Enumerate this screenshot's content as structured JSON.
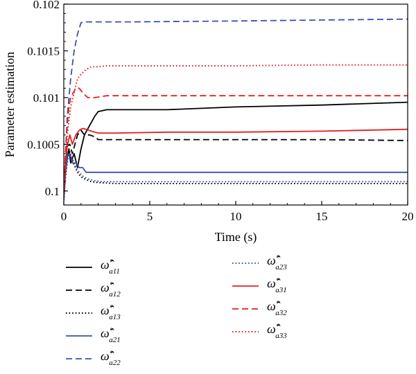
{
  "chart_data": {
    "type": "line",
    "title": "",
    "xlabel": "Time (s)",
    "ylabel": "Parameter estimation",
    "xlim": [
      0,
      20
    ],
    "ylim": [
      0.09985,
      0.102
    ],
    "x_ticks": [
      0,
      5,
      10,
      15,
      20
    ],
    "x_tick_labels": [
      "0",
      "5",
      "10",
      "15",
      "20"
    ],
    "y_ticks": [
      0.1,
      0.1005,
      0.101,
      0.1015,
      0.102
    ],
    "y_tick_labels": [
      "0.1",
      "0.1005",
      "0.101",
      "0.1015",
      "0.102"
    ],
    "grid": false,
    "legend_position": "below",
    "series": [
      {
        "name": "ω̂*a11",
        "base": "ω̂",
        "sup": "*",
        "sub": "a11",
        "color": "#000000",
        "style": "solid",
        "x": [
          0,
          0.1,
          0.2,
          0.3,
          0.4,
          0.6,
          0.8,
          1.0,
          1.2,
          1.5,
          1.8,
          2.0,
          2.5,
          3,
          4,
          6,
          10,
          15,
          20
        ],
        "y": [
          0.09995,
          0.1002,
          0.10035,
          0.10045,
          0.1003,
          0.1004,
          0.10025,
          0.10045,
          0.1006,
          0.1007,
          0.1008,
          0.10085,
          0.10087,
          0.10087,
          0.10087,
          0.10087,
          0.1009,
          0.10092,
          0.10095
        ]
      },
      {
        "name": "ω̂*a12",
        "base": "ω̂",
        "sup": "*",
        "sub": "a12",
        "color": "#000000",
        "style": "dashed",
        "x": [
          0,
          0.1,
          0.2,
          0.35,
          0.5,
          0.8,
          1.0,
          1.2,
          1.5,
          1.8,
          2.0,
          2.5,
          4,
          10,
          15,
          20
        ],
        "y": [
          0.09995,
          0.10025,
          0.10048,
          0.1005,
          0.1004,
          0.1006,
          0.10065,
          0.1006,
          0.1006,
          0.10058,
          0.10055,
          0.10055,
          0.10055,
          0.10055,
          0.10055,
          0.10054
        ]
      },
      {
        "name": "ω̂*a13",
        "base": "ω̂",
        "sup": "*",
        "sub": "a13",
        "color": "#000000",
        "style": "dotted",
        "x": [
          0,
          0.1,
          0.2,
          0.3,
          0.45,
          0.6,
          0.8,
          1.0,
          1.3,
          1.6,
          2.0,
          3,
          6,
          10,
          15,
          20
        ],
        "y": [
          0.0999,
          0.10015,
          0.1003,
          0.10045,
          0.10035,
          0.10028,
          0.1002,
          0.10015,
          0.10012,
          0.1001,
          0.10009,
          0.10008,
          0.10008,
          0.10008,
          0.10008,
          0.10008
        ]
      },
      {
        "name": "ω̂*a21",
        "base": "ω̂",
        "sup": "*",
        "sub": "a21",
        "color": "#3c4faf",
        "style": "solid",
        "x": [
          0,
          0.1,
          0.2,
          0.35,
          0.5,
          0.7,
          0.9,
          1.1,
          1.3,
          1.6,
          2.0,
          3,
          6,
          10,
          15,
          20
        ],
        "y": [
          0.0999,
          0.1002,
          0.10038,
          0.1004,
          0.1003,
          0.1003,
          0.10025,
          0.10025,
          0.1002,
          0.1002,
          0.1002,
          0.1002,
          0.1002,
          0.1002,
          0.1002,
          0.1002
        ]
      },
      {
        "name": "ω̂*a22",
        "base": "ω̂",
        "sup": "*",
        "sub": "a22",
        "color": "#3c4faf",
        "style": "dashed",
        "x": [
          0,
          0.2,
          0.4,
          0.6,
          0.8,
          1.0,
          1.2,
          1.5,
          2,
          4,
          10,
          15,
          20
        ],
        "y": [
          0.1,
          0.1008,
          0.1012,
          0.1015,
          0.10168,
          0.1018,
          0.10181,
          0.10181,
          0.10181,
          0.10181,
          0.10182,
          0.10183,
          0.10184
        ]
      },
      {
        "name": "ω̂*a23",
        "base": "ω̂",
        "sup": "*",
        "sub": "a23",
        "color": "#3c4faf",
        "style": "dotted",
        "x": [
          0,
          0.1,
          0.2,
          0.35,
          0.5,
          0.7,
          0.9,
          1.1,
          1.4,
          1.8,
          2.2,
          3,
          6,
          10,
          15,
          20
        ],
        "y": [
          0.0999,
          0.10018,
          0.10032,
          0.1004,
          0.10035,
          0.10025,
          0.1002,
          0.10016,
          0.10013,
          0.10011,
          0.1001,
          0.1001,
          0.1001,
          0.1001,
          0.1001,
          0.1001
        ]
      },
      {
        "name": "ω̂*a31",
        "base": "ω̂",
        "sup": "*",
        "sub": "a31",
        "color": "#e02020",
        "style": "solid",
        "x": [
          0,
          0.1,
          0.2,
          0.35,
          0.5,
          0.7,
          0.9,
          1.1,
          1.3,
          1.6,
          2.0,
          3,
          6,
          10,
          15,
          20
        ],
        "y": [
          0.09995,
          0.1003,
          0.10048,
          0.1006,
          0.1005,
          0.1006,
          0.10065,
          0.10067,
          0.10066,
          0.10064,
          0.10062,
          0.10062,
          0.10063,
          0.10063,
          0.10064,
          0.10066
        ]
      },
      {
        "name": "ω̂*a32",
        "base": "ω̂",
        "sup": "*",
        "sub": "a32",
        "color": "#e02020",
        "style": "dashed",
        "x": [
          0,
          0.1,
          0.2,
          0.3,
          0.4,
          0.55,
          0.7,
          0.9,
          1.1,
          1.4,
          1.8,
          2.5,
          4,
          10,
          15,
          20
        ],
        "y": [
          0.1,
          0.1004,
          0.1007,
          0.1009,
          0.101,
          0.10105,
          0.1011,
          0.1011,
          0.10105,
          0.101,
          0.101,
          0.10102,
          0.10102,
          0.10102,
          0.10102,
          0.10102
        ]
      },
      {
        "name": "ω̂*a33",
        "base": "ω̂",
        "sup": "*",
        "sub": "a33",
        "color": "#e02020",
        "style": "dotted",
        "x": [
          0,
          0.2,
          0.4,
          0.6,
          0.8,
          1.0,
          1.3,
          1.6,
          2.0,
          2.5,
          3,
          4,
          6,
          10,
          15,
          20
        ],
        "y": [
          0.1,
          0.1006,
          0.1009,
          0.10105,
          0.1012,
          0.10125,
          0.1013,
          0.10133,
          0.10133,
          0.10134,
          0.10134,
          0.10134,
          0.10134,
          0.10134,
          0.10135,
          0.10135
        ]
      }
    ]
  }
}
